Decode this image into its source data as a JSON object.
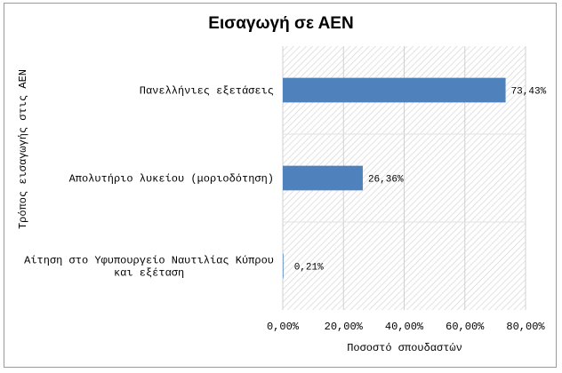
{
  "chart_data": {
    "type": "bar",
    "orientation": "horizontal",
    "title": "Εισαγωγή σε ΑΕΝ",
    "xlabel": "Ποσοστό σπουδαστών",
    "ylabel": "Τρόπος εισαγωγής στις ΑΕΝ",
    "categories": [
      [
        "Πανελλήνιες εξετάσεις"
      ],
      [
        "Απολυτήριο λυκείου (μοριοδότηση)"
      ],
      [
        "Αίτηση στο Υφυπουργείο Ναυτιλίας Κύπρου",
        "και εξέταση"
      ]
    ],
    "values": [
      73.43,
      26.36,
      0.21
    ],
    "data_labels": [
      "73,43%",
      "26,36%",
      "0,21%"
    ],
    "xlim": [
      0,
      80
    ],
    "xticks": [
      "0,00%",
      "20,00%",
      "40,00%",
      "60,00%",
      "80,00%"
    ],
    "grid": true,
    "bar_color": "#4f81bd",
    "plot_background": "hatched-gray"
  }
}
